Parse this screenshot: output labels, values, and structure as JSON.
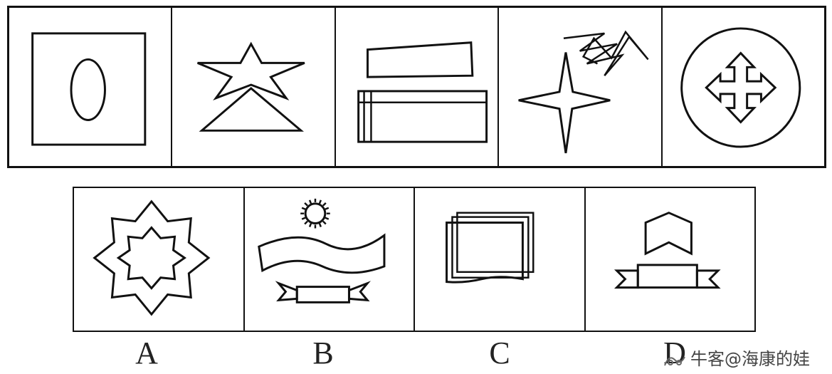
{
  "question_figures": [
    {
      "id": "q1",
      "icon": "square-with-oval-icon"
    },
    {
      "id": "q2",
      "icon": "star-over-triangle-icon"
    },
    {
      "id": "q3",
      "icon": "stacked-rectangles-icon"
    },
    {
      "id": "q4",
      "icon": "four-point-star-with-scribble-icon"
    },
    {
      "id": "q5",
      "icon": "circle-with-cross-arrows-icon"
    }
  ],
  "options": [
    {
      "letter": "A",
      "icon": "nested-octagram-icon"
    },
    {
      "letter": "B",
      "icon": "sun-wave-ribbon-icon"
    },
    {
      "letter": "C",
      "icon": "stacked-cards-icon"
    },
    {
      "letter": "D",
      "icon": "chevron-ribbon-icon"
    }
  ],
  "watermark": {
    "text": "牛客@海康的娃"
  }
}
